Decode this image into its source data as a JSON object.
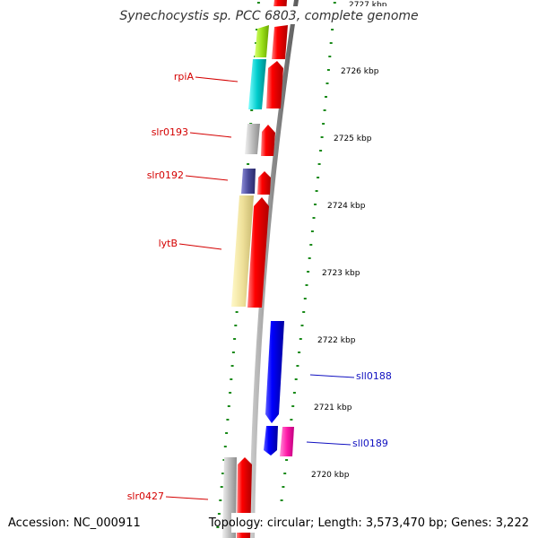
{
  "title": "Synechocystis sp. PCC 6803, complete genome",
  "footer": {
    "accession": "Accession: NC_000911",
    "topology": "Topology: circular; Length: 3,573,470 bp; Genes: 3,222"
  },
  "scale": {
    "tick_labels": [
      "2727 kbp",
      "2726 kbp",
      "2725 kbp",
      "2724 kbp",
      "2723 kbp",
      "2722 kbp",
      "2721 kbp",
      "2720 kbp"
    ]
  },
  "genes": [
    {
      "label": "rpiA",
      "strand": "forward"
    },
    {
      "label": "slr0193",
      "strand": "forward"
    },
    {
      "label": "slr0192",
      "strand": "forward"
    },
    {
      "label": "lytB",
      "strand": "forward"
    },
    {
      "label": "sll0188",
      "strand": "reverse"
    },
    {
      "label": "sll0189",
      "strand": "reverse"
    },
    {
      "label": "slr0427",
      "strand": "forward"
    }
  ],
  "colors": {
    "forward_label": "#d40000",
    "reverse_label": "#1010c0",
    "backbone": "#8a8a8a",
    "tick": "#1a8a1a",
    "forward_gene": "#ff0000",
    "reverse_gene": "#0000ff"
  }
}
